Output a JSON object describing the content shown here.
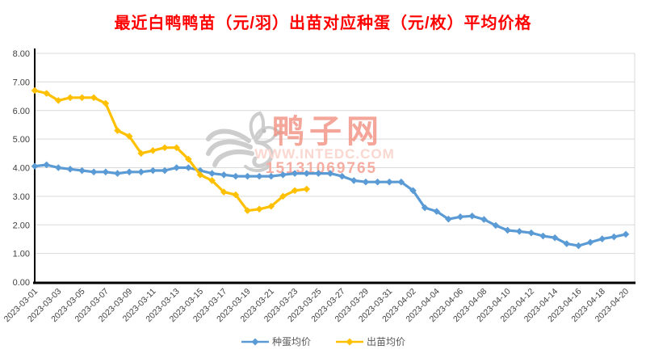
{
  "title": "最近白鸭鸭苗（元/羽）出苗对应种蛋（元/枚）平均价格",
  "colors": {
    "title": "#FF0000",
    "grid": "#D9D9D9",
    "axis": "#000000",
    "tick_label": "#404040",
    "legend_text": "#595959",
    "watermark_logo": "#CDCDCD",
    "watermark_name": "#F19180",
    "watermark_url": "#FAD7CF",
    "watermark_phone": "#F5ACA1"
  },
  "watermark": {
    "site_name": "鸭子网",
    "url": "WWW.INTEDC.COM",
    "phone": "15131069765"
  },
  "chart_data": {
    "type": "line",
    "title": "最近白鸭鸭苗（元/羽）出苗对应种蛋（元/枚）平均价格",
    "xlabel": "",
    "ylabel": "",
    "ylim": [
      0,
      8
    ],
    "ytick_step": 1,
    "y_ticks": [
      "8.00",
      "7.00",
      "6.00",
      "5.00",
      "4.00",
      "3.00",
      "2.00",
      "1.00",
      "0.00"
    ],
    "grid": true,
    "legend_position": "bottom",
    "marker": "diamond",
    "x": [
      "2023-03-01",
      "2023-03-02",
      "2023-03-03",
      "2023-03-04",
      "2023-03-05",
      "2023-03-06",
      "2023-03-07",
      "2023-03-08",
      "2023-03-09",
      "2023-03-10",
      "2023-03-11",
      "2023-03-12",
      "2023-03-13",
      "2023-03-14",
      "2023-03-15",
      "2023-03-16",
      "2023-03-17",
      "2023-03-18",
      "2023-03-19",
      "2023-03-20",
      "2023-03-21",
      "2023-03-22",
      "2023-03-23",
      "2023-03-24",
      "2023-03-25",
      "2023-03-26",
      "2023-03-27",
      "2023-03-28",
      "2023-03-29",
      "2023-03-30",
      "2023-03-31",
      "2023-04-01",
      "2023-04-02",
      "2023-04-03",
      "2023-04-04",
      "2023-04-05",
      "2023-04-06",
      "2023-04-07",
      "2023-04-08",
      "2023-04-09",
      "2023-04-10",
      "2023-04-11",
      "2023-04-12",
      "2023-04-13",
      "2023-04-14",
      "2023-04-15",
      "2023-04-16",
      "2023-04-17",
      "2023-04-18",
      "2023-04-19",
      "2023-04-20"
    ],
    "x_tick_labels": [
      "2023-03-01",
      "2023-03-03",
      "2023-03-05",
      "2023-03-07",
      "2023-03-09",
      "2023-03-11",
      "2023-03-13",
      "2023-03-15",
      "2023-03-17",
      "2023-03-19",
      "2023-03-21",
      "2023-03-23",
      "2023-03-25",
      "2023-03-27",
      "2023-03-29",
      "2023-03-31",
      "2023-04-02",
      "2023-04-04",
      "2023-04-06",
      "2023-04-08",
      "2023-04-10",
      "2023-04-12",
      "2023-04-14",
      "2023-04-16",
      "2023-04-18",
      "2023-04-20"
    ],
    "x_tick_every": 2,
    "series": [
      {
        "name": "种蛋均价",
        "color": "#5B9BD5",
        "values": [
          4.05,
          4.1,
          4.0,
          3.95,
          3.9,
          3.85,
          3.85,
          3.8,
          3.85,
          3.85,
          3.9,
          3.9,
          4.0,
          4.0,
          3.9,
          3.8,
          3.75,
          3.7,
          3.7,
          3.7,
          3.7,
          3.75,
          3.8,
          3.8,
          3.8,
          3.8,
          3.7,
          3.55,
          3.5,
          3.5,
          3.5,
          3.5,
          3.2,
          2.6,
          2.47,
          2.2,
          2.28,
          2.31,
          2.19,
          1.98,
          1.81,
          1.77,
          1.72,
          1.61,
          1.55,
          1.34,
          1.27,
          1.39,
          1.51,
          1.58,
          1.67
        ]
      },
      {
        "name": "出苗均价",
        "color": "#FFC000",
        "values": [
          6.7,
          6.6,
          6.35,
          6.45,
          6.45,
          6.45,
          6.25,
          5.3,
          5.1,
          4.5,
          4.6,
          4.7,
          4.7,
          4.3,
          3.75,
          3.55,
          3.15,
          3.05,
          2.5,
          2.55,
          2.65,
          3.0,
          3.2,
          3.25
        ]
      }
    ]
  }
}
